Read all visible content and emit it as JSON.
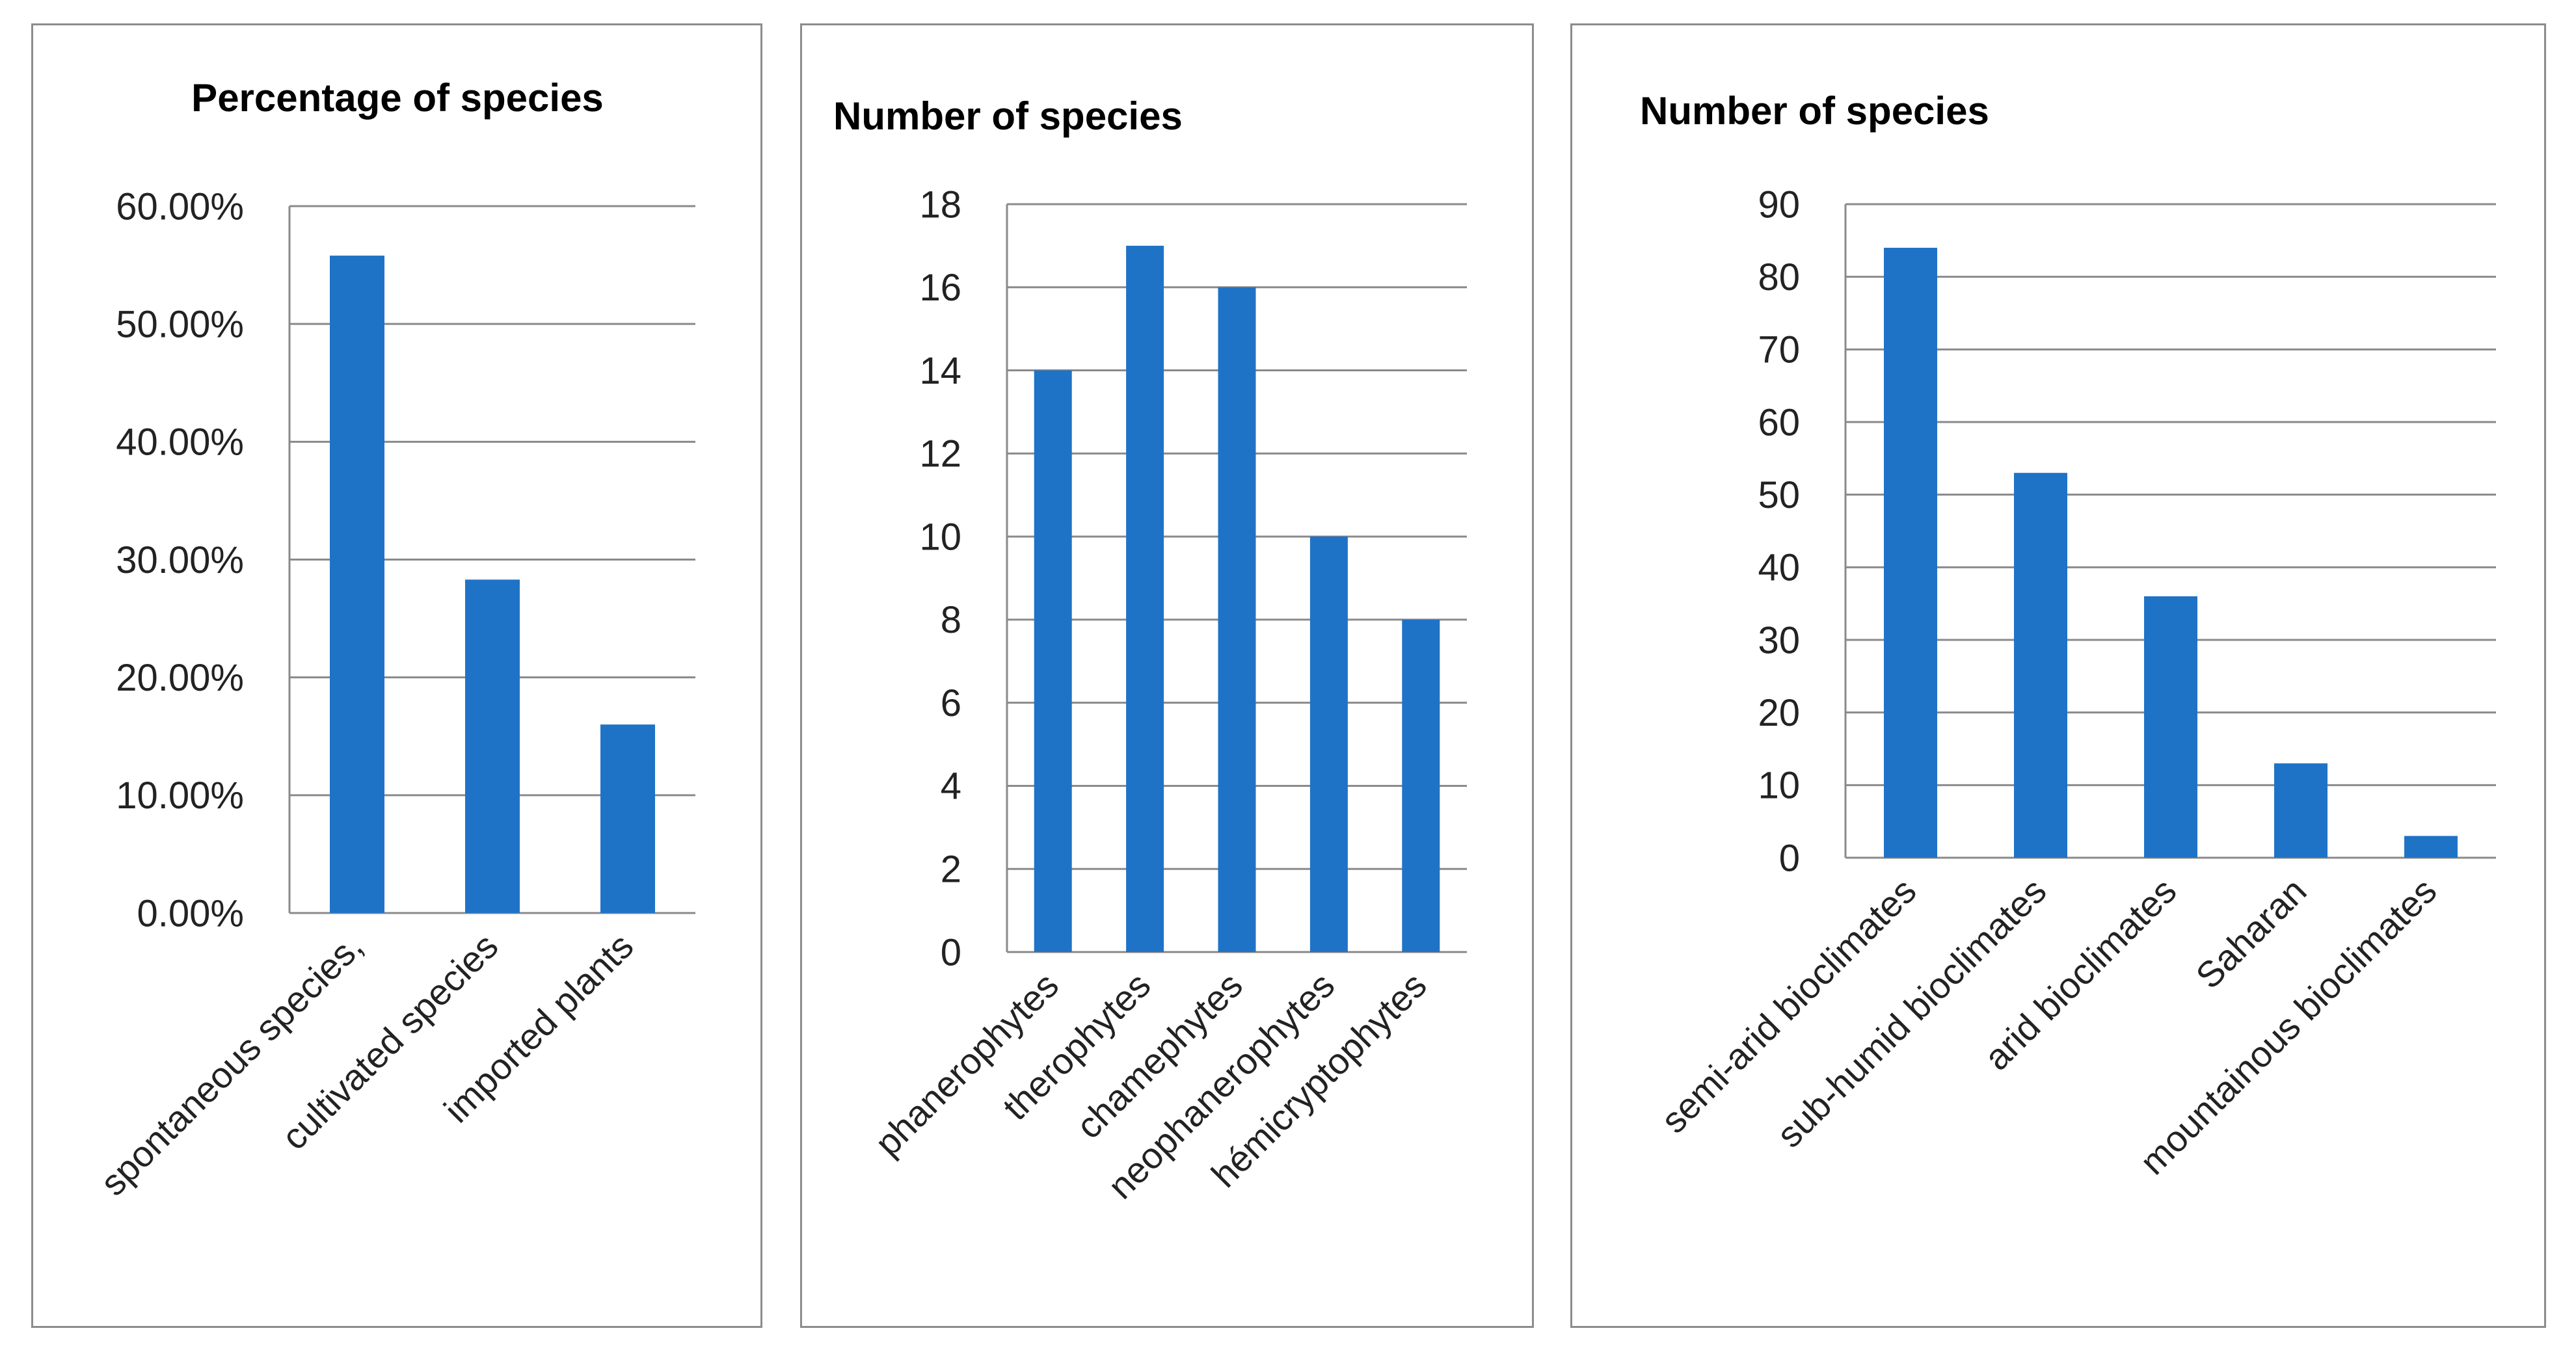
{
  "bar_color": "#1f73c7",
  "chart_data": [
    {
      "type": "bar",
      "title": "Percentage of species",
      "categories": [
        "spontaneous species,",
        "cultivated species",
        "imported plants"
      ],
      "values": [
        55.8,
        28.3,
        16.0
      ],
      "tick_labels": [
        "0.00%",
        "10.00%",
        "20.00%",
        "30.00%",
        "40.00%",
        "50.00%",
        "60.00%"
      ],
      "ylim": [
        0,
        60
      ],
      "ystep": 10,
      "xlabel": "",
      "ylabel": ""
    },
    {
      "type": "bar",
      "title": "Number of species",
      "categories": [
        "phanerophytes",
        "therophytes",
        "chamephytes",
        "neophanerophytes",
        "hémicryptophytes"
      ],
      "values": [
        14,
        17,
        16,
        10,
        8
      ],
      "tick_labels": [
        "0",
        "2",
        "4",
        "6",
        "8",
        "10",
        "12",
        "14",
        "16",
        "18"
      ],
      "ylim": [
        0,
        18
      ],
      "ystep": 2,
      "xlabel": "",
      "ylabel": ""
    },
    {
      "type": "bar",
      "title": "Number of species",
      "categories": [
        "semi-arid bioclimates",
        "sub-humid bioclimates",
        "arid bioclimates",
        "Saharan",
        "mountainous bioclimates"
      ],
      "values": [
        84,
        53,
        36,
        13,
        3
      ],
      "tick_labels": [
        "0",
        "10",
        "20",
        "30",
        "40",
        "50",
        "60",
        "70",
        "80",
        "90"
      ],
      "ylim": [
        0,
        90
      ],
      "ystep": 10,
      "xlabel": "",
      "ylabel": ""
    }
  ]
}
